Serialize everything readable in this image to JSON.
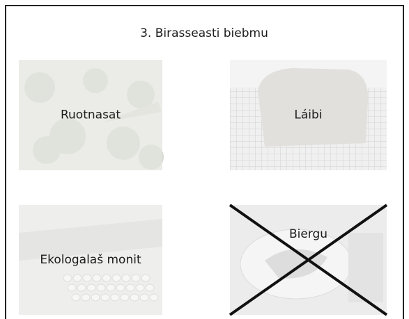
{
  "title": "3. Birasseasti biebmu",
  "options": [
    {
      "label": "Ruotnasat"
    },
    {
      "label": "Láibi"
    },
    {
      "label": "Ekologalaš monit"
    },
    {
      "label": "Biergu",
      "crossed": true
    }
  ]
}
